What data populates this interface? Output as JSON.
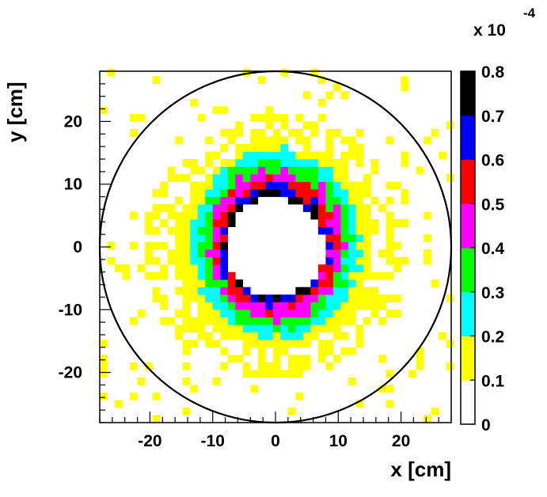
{
  "chart_data": {
    "type": "heatmap",
    "title": "",
    "xlabel": "x [cm]",
    "ylabel": "y [cm]",
    "xlim": [
      -28,
      28
    ],
    "ylim": [
      -28,
      28
    ],
    "x_ticks": [
      -20,
      -10,
      0,
      10,
      20
    ],
    "y_ticks": [
      20,
      10,
      0,
      -10,
      -20
    ],
    "x_tick_labels": [
      "-20",
      "-10",
      "0",
      "10",
      "20"
    ],
    "y_tick_labels": [
      "20",
      "10",
      "0",
      "-10",
      "-20"
    ],
    "bin_size_cm": 1.2,
    "inner_hole_radius_cm": 7.8,
    "outer_circle_radius_cm": 28,
    "colorbar": {
      "levels": [
        0,
        0.1,
        0.2,
        0.3,
        0.4,
        0.5,
        0.6,
        0.7,
        0.8
      ],
      "level_labels": [
        "0",
        "0.1",
        "0.2",
        "0.3",
        "0.4",
        "0.5",
        "0.6",
        "0.7",
        "0.8"
      ],
      "colors": [
        "#ffffff",
        "#ffff00",
        "#00ffff",
        "#00ff00",
        "#ff00ff",
        "#ff0000",
        "#0000ff",
        "#000000"
      ],
      "scale_factor": "x 10",
      "scale_exponent": "-4"
    },
    "radial_profile": {
      "r_cm": [
        7.8,
        8.5,
        9.5,
        10.5,
        11.5,
        12.5,
        13.8,
        15.5,
        17.5,
        19.5,
        22
      ],
      "value_e4": [
        0.76,
        0.66,
        0.56,
        0.47,
        0.39,
        0.31,
        0.22,
        0.14,
        0.09,
        0.05,
        0.01
      ]
    },
    "anisotropy_note": "distribution extends further along +y/-y and left-right sides; irregular outer fringe of isolated yellow bins"
  }
}
